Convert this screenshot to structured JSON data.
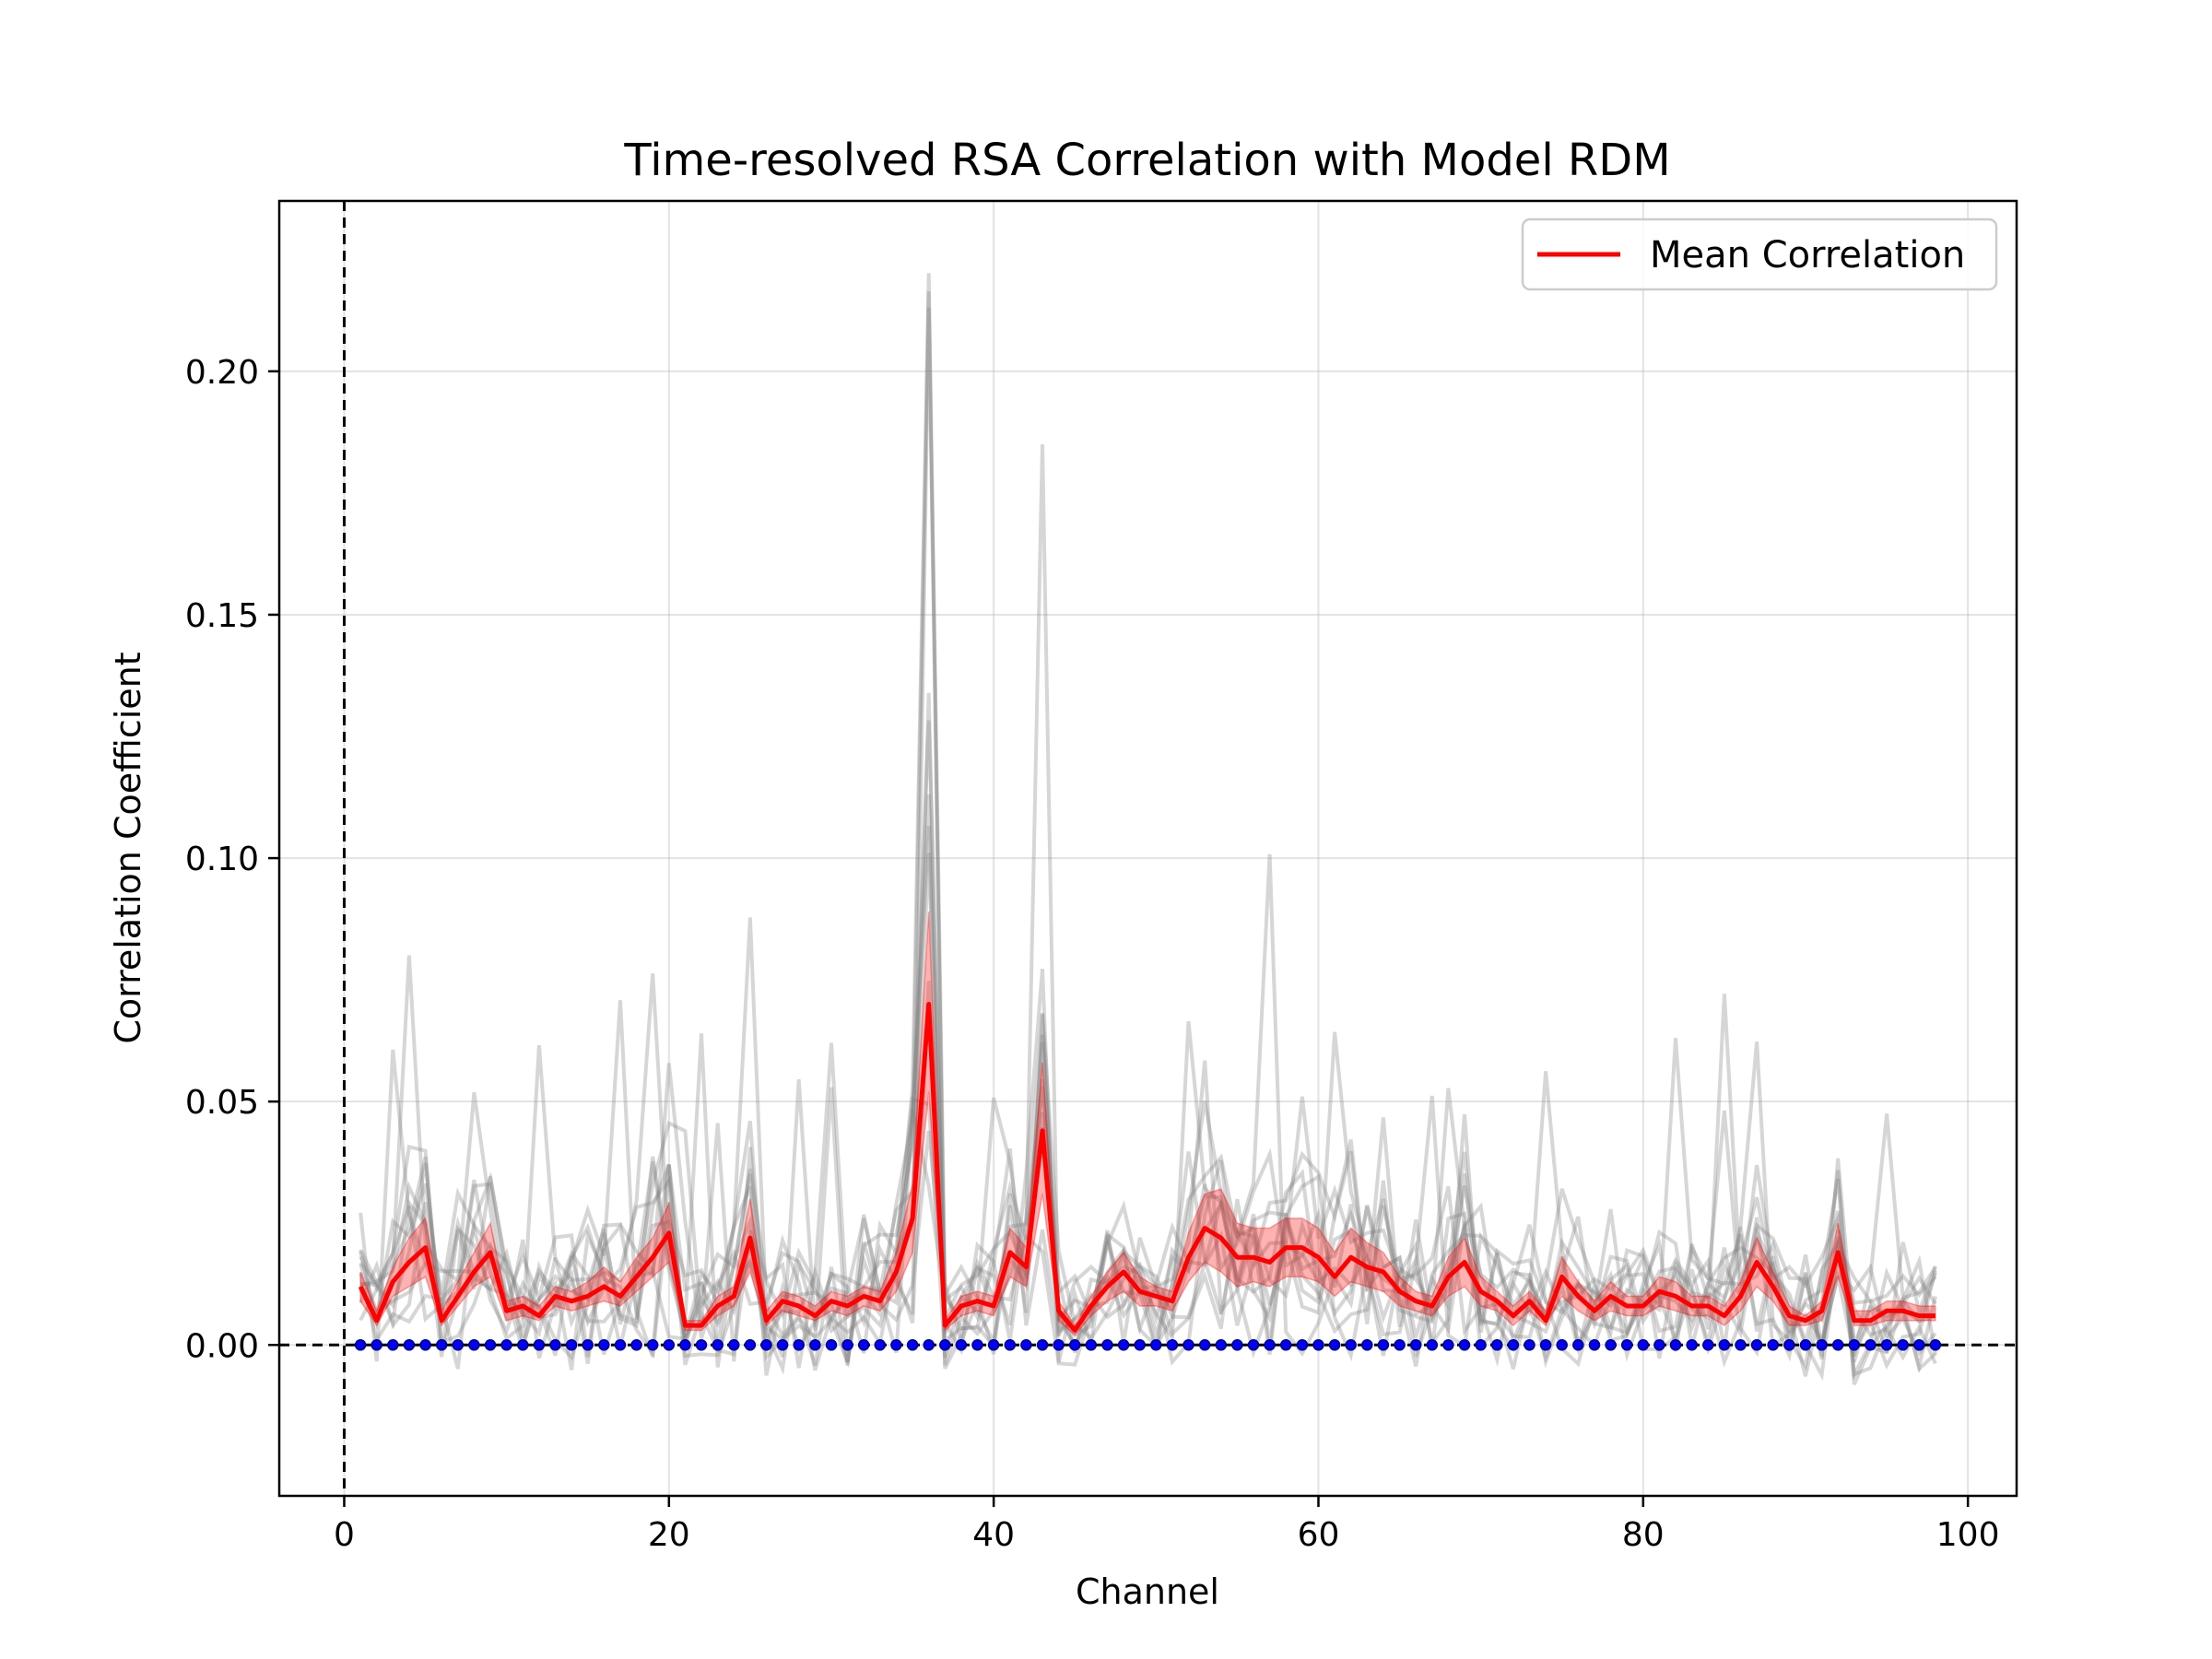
{
  "chart_data": {
    "type": "line",
    "title": "Time-resolved RSA Correlation with Model RDM",
    "xlabel": "Channel",
    "ylabel": "Correlation Coefficient",
    "xlim": [
      -4,
      103
    ],
    "ylim": [
      -0.031,
      0.235
    ],
    "xticks": [
      0,
      20,
      40,
      60,
      80,
      100
    ],
    "xtick_labels": [
      "0",
      "20",
      "40",
      "60",
      "80",
      "100"
    ],
    "yticks": [
      0.0,
      0.05,
      0.1,
      0.15,
      0.2
    ],
    "ytick_labels": [
      "0.00",
      "0.05",
      "0.10",
      "0.15",
      "0.20"
    ],
    "grid": true,
    "legend": {
      "location": "top-right",
      "entries": [
        "Mean Correlation"
      ]
    },
    "reference_lines": {
      "vertical_x": 0,
      "horizontal_y": 0
    },
    "colors": {
      "mean": "#ff0000",
      "band": "#ff0000",
      "subjects": "#808080",
      "markers": "#0000ff"
    },
    "x": [
      1,
      2,
      3,
      4,
      5,
      6,
      7,
      8,
      9,
      10,
      11,
      12,
      13,
      14,
      15,
      16,
      17,
      18,
      19,
      20,
      21,
      22,
      23,
      24,
      25,
      26,
      27,
      28,
      29,
      30,
      31,
      32,
      33,
      34,
      35,
      36,
      37,
      38,
      39,
      40,
      41,
      42,
      43,
      44,
      45,
      46,
      47,
      48,
      49,
      50,
      51,
      52,
      53,
      54,
      55,
      56,
      57,
      58,
      59,
      60,
      61,
      62,
      63,
      64,
      65,
      66,
      67,
      68,
      69,
      70,
      71,
      72,
      73,
      74,
      75,
      76,
      77,
      78,
      79,
      80,
      81,
      82,
      83,
      84,
      85,
      86,
      87,
      88,
      89,
      90,
      91,
      92,
      93,
      94,
      95,
      96,
      97,
      98
    ],
    "series": [
      {
        "name": "Mean Correlation",
        "values": [
          0.012,
          0.005,
          0.013,
          0.017,
          0.02,
          0.005,
          0.01,
          0.015,
          0.019,
          0.007,
          0.008,
          0.006,
          0.01,
          0.009,
          0.01,
          0.012,
          0.01,
          0.014,
          0.018,
          0.023,
          0.004,
          0.004,
          0.008,
          0.01,
          0.022,
          0.005,
          0.009,
          0.008,
          0.006,
          0.009,
          0.008,
          0.01,
          0.009,
          0.015,
          0.026,
          0.07,
          0.004,
          0.008,
          0.009,
          0.008,
          0.019,
          0.016,
          0.044,
          0.007,
          0.003,
          0.008,
          0.012,
          0.015,
          0.011,
          0.01,
          0.009,
          0.018,
          0.024,
          0.022,
          0.018,
          0.018,
          0.017,
          0.02,
          0.02,
          0.018,
          0.014,
          0.018,
          0.016,
          0.015,
          0.011,
          0.009,
          0.008,
          0.014,
          0.017,
          0.011,
          0.009,
          0.006,
          0.009,
          0.005,
          0.014,
          0.01,
          0.007,
          0.01,
          0.008,
          0.008,
          0.011,
          0.01,
          0.008,
          0.008,
          0.006,
          0.01,
          0.017,
          0.012,
          0.006,
          0.005,
          0.007,
          0.019,
          0.005,
          0.005,
          0.007,
          0.007,
          0.006,
          0.006
        ],
        "lower": [
          0.009,
          0.004,
          0.01,
          0.012,
          0.014,
          0.004,
          0.008,
          0.012,
          0.014,
          0.005,
          0.006,
          0.005,
          0.008,
          0.007,
          0.008,
          0.009,
          0.008,
          0.011,
          0.014,
          0.017,
          0.003,
          0.003,
          0.006,
          0.008,
          0.015,
          0.004,
          0.007,
          0.006,
          0.005,
          0.007,
          0.006,
          0.008,
          0.007,
          0.011,
          0.019,
          0.052,
          0.003,
          0.006,
          0.007,
          0.006,
          0.014,
          0.012,
          0.031,
          0.005,
          0.002,
          0.006,
          0.009,
          0.011,
          0.008,
          0.008,
          0.007,
          0.013,
          0.017,
          0.015,
          0.012,
          0.013,
          0.012,
          0.014,
          0.014,
          0.013,
          0.01,
          0.013,
          0.012,
          0.011,
          0.008,
          0.007,
          0.006,
          0.01,
          0.012,
          0.008,
          0.007,
          0.004,
          0.007,
          0.004,
          0.01,
          0.007,
          0.005,
          0.007,
          0.006,
          0.006,
          0.008,
          0.007,
          0.006,
          0.006,
          0.004,
          0.007,
          0.012,
          0.009,
          0.004,
          0.004,
          0.005,
          0.014,
          0.004,
          0.004,
          0.005,
          0.005,
          0.005,
          0.005
        ],
        "upper": [
          0.015,
          0.007,
          0.016,
          0.022,
          0.026,
          0.007,
          0.013,
          0.019,
          0.025,
          0.009,
          0.01,
          0.008,
          0.012,
          0.011,
          0.013,
          0.016,
          0.013,
          0.018,
          0.022,
          0.029,
          0.005,
          0.005,
          0.01,
          0.012,
          0.03,
          0.007,
          0.011,
          0.01,
          0.008,
          0.011,
          0.01,
          0.012,
          0.011,
          0.019,
          0.033,
          0.089,
          0.005,
          0.01,
          0.011,
          0.01,
          0.024,
          0.02,
          0.058,
          0.009,
          0.004,
          0.01,
          0.015,
          0.019,
          0.014,
          0.012,
          0.011,
          0.023,
          0.031,
          0.032,
          0.025,
          0.024,
          0.024,
          0.026,
          0.026,
          0.024,
          0.019,
          0.024,
          0.021,
          0.019,
          0.014,
          0.011,
          0.01,
          0.018,
          0.022,
          0.014,
          0.011,
          0.008,
          0.011,
          0.007,
          0.018,
          0.013,
          0.009,
          0.013,
          0.01,
          0.01,
          0.014,
          0.013,
          0.01,
          0.01,
          0.008,
          0.013,
          0.022,
          0.015,
          0.008,
          0.006,
          0.009,
          0.025,
          0.007,
          0.007,
          0.009,
          0.009,
          0.008,
          0.008
        ]
      }
    ]
  }
}
